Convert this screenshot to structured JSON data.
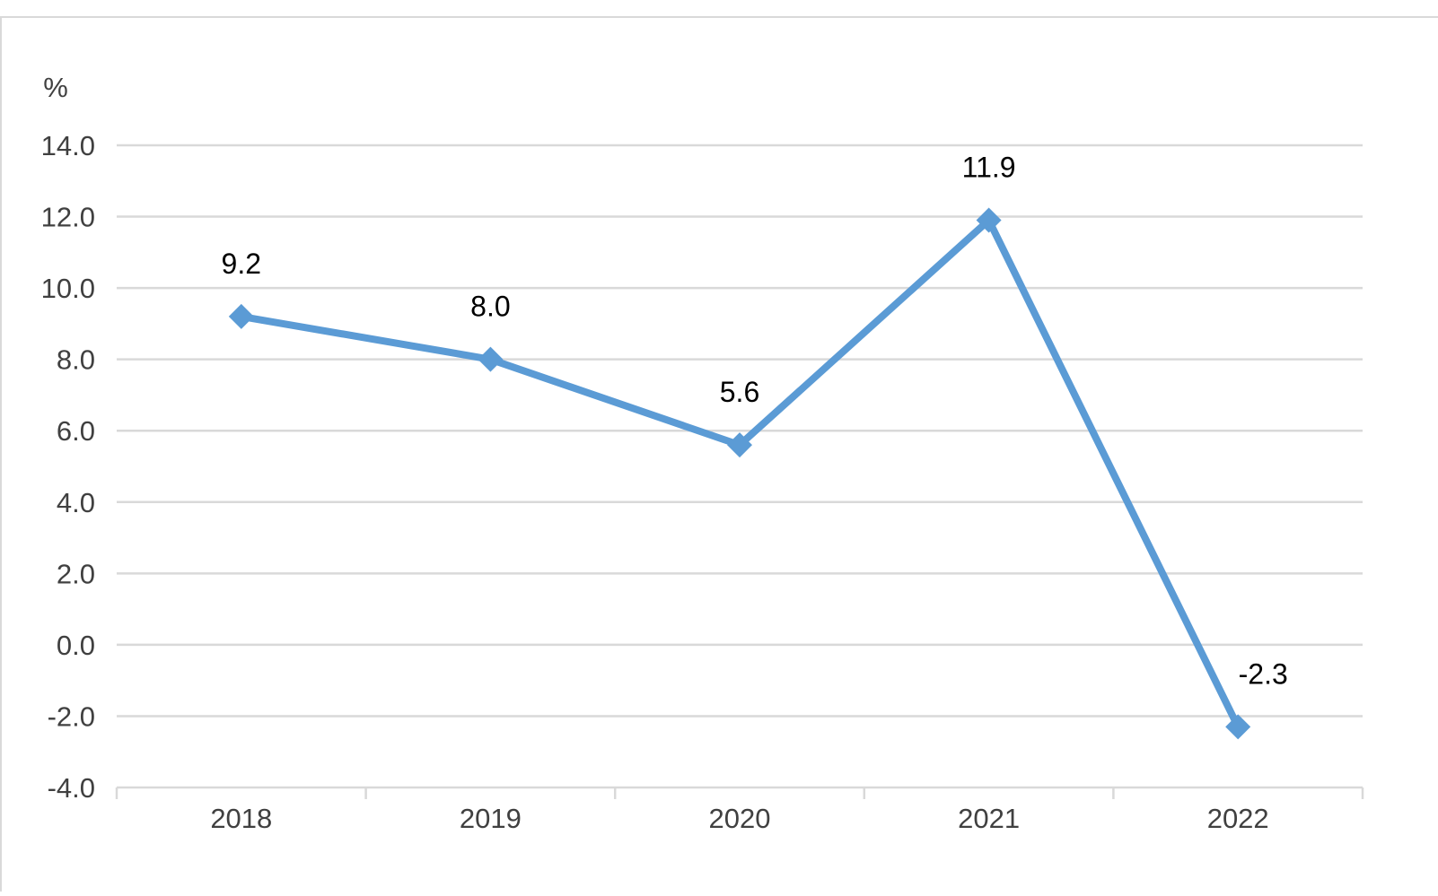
{
  "chart_data": {
    "type": "line",
    "title": "",
    "xlabel": "",
    "ylabel": "%",
    "categories": [
      "2018",
      "2019",
      "2020",
      "2021",
      "2022"
    ],
    "series": [
      {
        "values": [
          9.2,
          8.0,
          5.6,
          11.9,
          -2.3
        ],
        "color": "#5b9bd5",
        "marker": "diamond"
      }
    ],
    "data_labels": [
      "9.2",
      "8.0",
      "5.6",
      "11.9",
      "-2.3"
    ],
    "ylim": [
      -4.0,
      14.0
    ],
    "y_ticks": [
      "-4.0",
      "-2.0",
      "0.0",
      "2.0",
      "4.0",
      "6.0",
      "8.0",
      "10.0",
      "12.0",
      "14.0"
    ],
    "y_tick_values": [
      -4,
      -2,
      0,
      2,
      4,
      6,
      8,
      10,
      12,
      14
    ],
    "grid": true,
    "legend": "none",
    "colors": {
      "line": "#5b9bd5",
      "grid": "#d9d9d9",
      "axis_text": "#404040",
      "label_text": "#000000"
    }
  }
}
